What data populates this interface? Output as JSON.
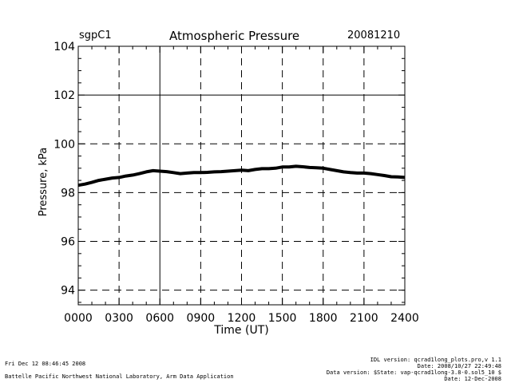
{
  "header": {
    "site": "sgpC1",
    "title": "Atmospheric Pressure",
    "date": "20081210"
  },
  "chart_data": {
    "type": "line",
    "title": "Atmospheric Pressure",
    "xlabel": "Time (UT)",
    "ylabel": "Pressure, kPa",
    "xlim": [
      0,
      24
    ],
    "ylim": [
      93.4,
      104.0
    ],
    "x_ticks": [
      0,
      3,
      6,
      9,
      12,
      15,
      18,
      21,
      24
    ],
    "x_tick_labels": [
      "0000",
      "0300",
      "0600",
      "0900",
      "1200",
      "1500",
      "1800",
      "2100",
      "2400"
    ],
    "y_ticks": [
      94,
      96,
      98,
      100,
      102,
      104
    ],
    "y_tick_labels": [
      "94",
      "96",
      "98",
      "100",
      "102",
      "104"
    ],
    "grid": true,
    "series": [
      {
        "x": [
          0,
          0.5,
          1,
          1.5,
          2,
          2.5,
          3,
          3.5,
          4,
          4.5,
          5,
          5.5,
          6,
          6.5,
          7,
          7.5,
          8,
          8.5,
          9,
          9.5,
          10,
          10.5,
          11,
          11.5,
          12,
          12.5,
          13,
          13.5,
          14,
          14.5,
          15,
          15.5,
          16,
          16.5,
          17,
          17.5,
          18,
          18.5,
          19,
          19.5,
          20,
          20.5,
          21,
          21.5,
          22,
          22.5,
          23,
          23.5,
          24
        ],
        "y": [
          98.3,
          98.35,
          98.42,
          98.5,
          98.55,
          98.6,
          98.62,
          98.68,
          98.72,
          98.78,
          98.85,
          98.9,
          98.88,
          98.86,
          98.82,
          98.78,
          98.8,
          98.82,
          98.82,
          98.83,
          98.85,
          98.86,
          98.88,
          98.9,
          98.92,
          98.9,
          98.95,
          98.98,
          98.98,
          99.0,
          99.05,
          99.05,
          99.08,
          99.06,
          99.03,
          99.02,
          99.0,
          98.95,
          98.9,
          98.85,
          98.82,
          98.8,
          98.8,
          98.78,
          98.74,
          98.7,
          98.65,
          98.64,
          98.62
        ]
      }
    ]
  },
  "footer": {
    "left_line1": "Fri Dec 12 08:46:45 2008",
    "left_line2": "Battelle Pacific Northwest National Laboratory, Arm Data Application",
    "right_line1": "IDL version: qcrad1long_plots.pro,v 1.1",
    "right_line2": "Date: 2008/10/27 22:49:48",
    "right_line3": "Data version: $State: vap-qcrad1long-3.8-0.sol5_10 $",
    "right_line4": "Date: 12-Dec-2008"
  }
}
